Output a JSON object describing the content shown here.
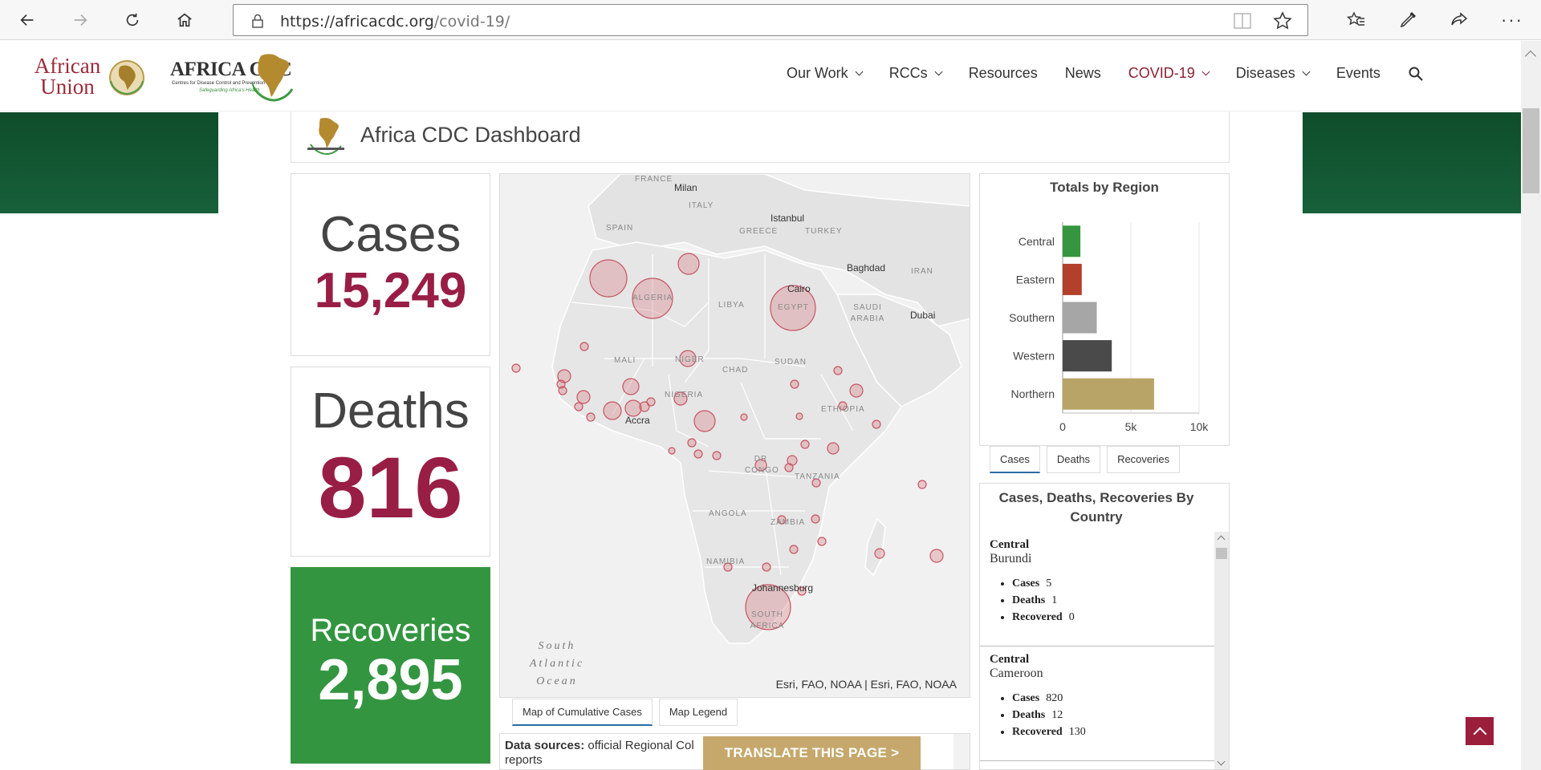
{
  "browser": {
    "url_host": "https://africacdc.org",
    "url_path": "/covid-19/"
  },
  "site": {
    "au_logo_text": "African Union",
    "cdc_logo_title": "AFRICA CDC",
    "cdc_logo_subtitle": "Centres for Disease Control and Prevention",
    "cdc_logo_tagline": "Safeguarding Africa's Health",
    "nav": [
      "Our Work",
      "RCCs",
      "Resources",
      "News",
      "COVID-19",
      "Diseases",
      "Events"
    ]
  },
  "dashboard": {
    "title": "Africa CDC Dashboard",
    "cases_label": "Cases",
    "cases_value": "15,249",
    "deaths_label": "Deaths",
    "deaths_value": "816",
    "recoveries_label": "Recoveries",
    "recoveries_value": "2,895"
  },
  "map": {
    "countries": [
      "FRANCE",
      "ITALY",
      "SPAIN",
      "GREECE",
      "TURKEY",
      "IRAN",
      "ALGERIA",
      "LIBYA",
      "EGYPT",
      "SAUDI ARABIA",
      "MALI",
      "NIGER",
      "CHAD",
      "SUDAN",
      "NIGERIA",
      "ETHIOPIA",
      "DR CONGO",
      "TANZANIA",
      "ANGOLA",
      "ZAMBIA",
      "NAMIBIA",
      "SOUTH AFRICA"
    ],
    "cities": [
      "Milan",
      "Istanbul",
      "Baghdad",
      "Cairo",
      "Dubai",
      "Accra",
      "Johannesburg"
    ],
    "ocean": "South Atlantic Ocean",
    "attribution": "Esri, FAO, NOAA | Esri, FAO, NOAA",
    "tabs": [
      "Map of Cumulative Cases",
      "Map Legend"
    ]
  },
  "sources": {
    "label": "Data sources:",
    "text": "official Regional Col",
    "text_more": "reports"
  },
  "translate_button": "TRANSLATE THIS PAGE >",
  "chart_data": {
    "type": "bar",
    "title": "Totals by Region",
    "categories": [
      "Central",
      "Eastern",
      "Southern",
      "Western",
      "Northern"
    ],
    "values": [
      1300,
      1400,
      2500,
      3600,
      6700
    ],
    "colors": [
      "#35963f",
      "#b2402a",
      "#a6a6a6",
      "#4a4a4a",
      "#b9a467"
    ],
    "xlim": [
      0,
      10000
    ],
    "xticks": [
      "0",
      "5k",
      "10k"
    ],
    "tabs": [
      "Cases",
      "Deaths",
      "Recoveries"
    ]
  },
  "country_list": {
    "title": "Cases, Deaths, Recoveries By Country",
    "items": [
      {
        "region": "Central",
        "country": "Burundi",
        "cases_label": "Cases",
        "cases": "5",
        "deaths_label": "Deaths",
        "deaths": "1",
        "recovered_label": "Recovered",
        "recovered": "0"
      },
      {
        "region": "Central",
        "country": "Cameroon",
        "cases_label": "Cases",
        "cases": "820",
        "deaths_label": "Deaths",
        "deaths": "12",
        "recovered_label": "Recovered",
        "recovered": "130"
      }
    ]
  },
  "colors": {
    "brand_red": "#981e45",
    "recoveries_green": "#339540",
    "banner_green": "#0f4d2a",
    "translate_gold": "#c6a86c"
  }
}
